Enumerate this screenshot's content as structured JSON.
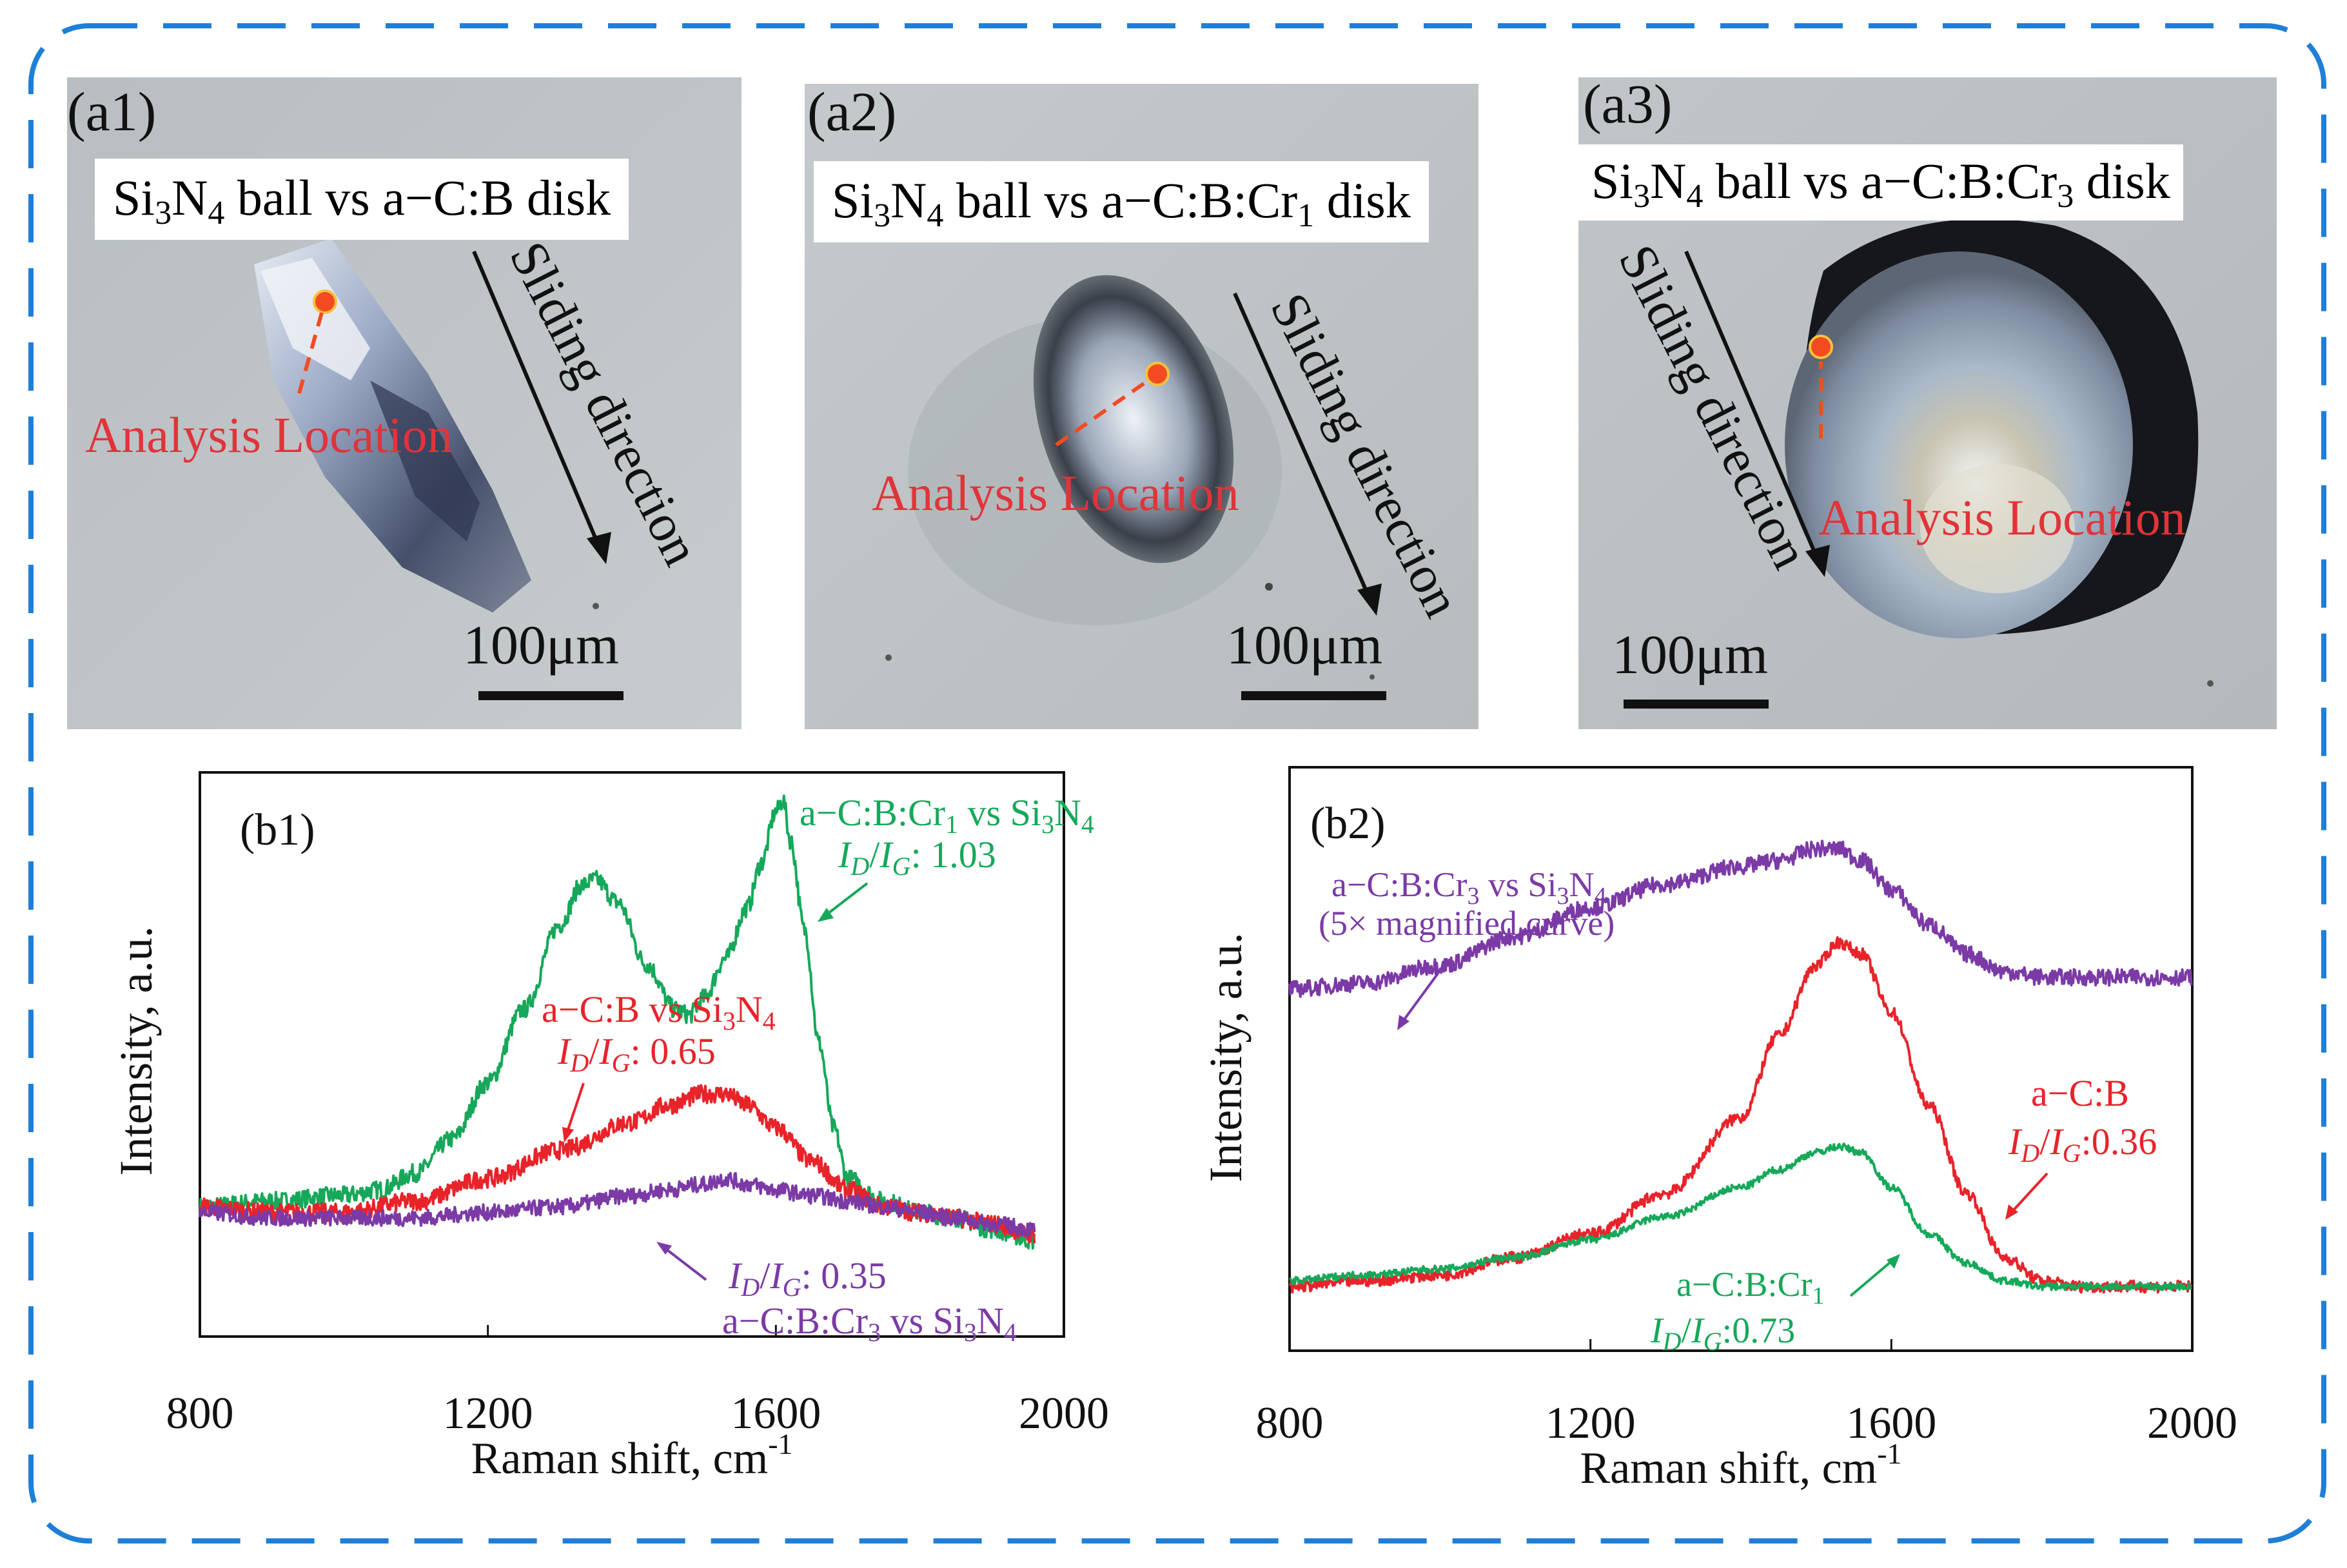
{
  "panels": {
    "a1": {
      "label": "(a1)",
      "title": {
        "p1": "Si",
        "s1": "3",
        "p2": "N",
        "s2": "4",
        "p3": " ball vs a−C:B disk"
      },
      "sliding": "Sliding direction",
      "location": "Analysis Location",
      "scale": "100μm"
    },
    "a2": {
      "label": "(a2)",
      "title": {
        "p1": "Si",
        "s1": "3",
        "p2": "N",
        "s2": "4",
        "p3": " ball vs a−C:B:Cr",
        "s3": "1",
        "p4": " disk"
      },
      "sliding": "Sliding direction",
      "location": "Analysis Location",
      "scale": "100μm"
    },
    "a3": {
      "label": "(a3)",
      "title": {
        "p1": "Si",
        "s1": "3",
        "p2": "N",
        "s2": "4",
        "p3": " ball vs a−C:B:Cr",
        "s3": "3",
        "p4": "  disk"
      },
      "sliding": "Sliding direction",
      "location": "Analysis Location",
      "scale": "100μm"
    }
  },
  "colors": {
    "green": "#16a85a",
    "red": "#e8232a",
    "purple": "#7b3aa6",
    "frame": "#1f7fd6",
    "marker": "#f24b22"
  },
  "chart_data": [
    {
      "type": "line",
      "panel_label": "(b1)",
      "xlabel": "Raman shift, cm",
      "xlabel_sup": "-1",
      "ylabel": "Intensity, a.u.",
      "xlim": [
        800,
        2000
      ],
      "ylim": [
        0,
        100
      ],
      "xticks": [
        "800",
        "1200",
        "1600",
        "2000"
      ],
      "series": [
        {
          "name": "a−C:B:Cr1 vs Si3N4",
          "color": "green",
          "x": [
            800,
            900,
            1000,
            1050,
            1100,
            1150,
            1200,
            1250,
            1300,
            1330,
            1350,
            1380,
            1420,
            1460,
            1480,
            1500,
            1530,
            1560,
            1580,
            1600,
            1610,
            1620,
            1640,
            1660,
            1680,
            1700,
            1750,
            1800,
            1850,
            1900,
            1960
          ],
          "y": [
            23,
            24,
            25,
            26,
            29,
            35,
            45,
            58,
            73,
            80,
            81,
            77,
            66,
            58,
            57,
            60,
            67,
            76,
            84,
            93,
            95,
            88,
            72,
            52,
            37,
            28,
            24,
            22,
            21,
            19,
            17
          ],
          "noise": 1.6
        },
        {
          "name": "a−C:B vs Si3N4",
          "color": "red",
          "x": [
            800,
            900,
            1000,
            1100,
            1200,
            1300,
            1400,
            1450,
            1500,
            1530,
            1560,
            1600,
            1650,
            1700,
            1750,
            1800,
            1850,
            1900,
            1960
          ],
          "y": [
            23,
            22,
            22,
            24,
            28,
            33,
            38,
            41,
            43,
            43,
            41,
            37,
            31,
            26,
            23,
            22,
            21,
            20,
            18
          ],
          "noise": 1.6
        },
        {
          "name": "a−C:B:Cr3 vs Si3N4",
          "color": "purple",
          "x": [
            800,
            900,
            1000,
            1100,
            1200,
            1300,
            1400,
            1450,
            1500,
            1530,
            1560,
            1600,
            1650,
            1700,
            1750,
            1800,
            1850,
            1900,
            1960
          ],
          "y": [
            22,
            21,
            21,
            21,
            22,
            23,
            25,
            26,
            27,
            28,
            27,
            26,
            25,
            24,
            23,
            22,
            21,
            20,
            19
          ],
          "noise": 1.4
        }
      ],
      "annotations": [
        {
          "color": "green",
          "line1": "a−C:B:Cr",
          "sub1": "1",
          "line1b": " vs Si",
          "sub2": "3",
          "line1c": "N",
          "sub3": "4",
          "ratio": "1.03"
        },
        {
          "color": "red",
          "line1": "a−C:B vs Si",
          "sub1": "3",
          "line1c": "N",
          "sub3": "4",
          "ratio": "0.65"
        },
        {
          "color": "purple",
          "line1": "a−C:B:Cr",
          "sub1": "3",
          "line1b": " vs Si",
          "sub2": "3",
          "line1c": "N",
          "sub3": "4",
          "ratio": "0.35"
        }
      ]
    },
    {
      "type": "line",
      "panel_label": "(b2)",
      "xlabel": "Raman shift, cm",
      "xlabel_sup": "-1",
      "ylabel": "Intensity, a.u.",
      "xlim": [
        800,
        2000
      ],
      "ylim": [
        0,
        100
      ],
      "xticks": [
        "800",
        "1200",
        "1600",
        "2000"
      ],
      "series": [
        {
          "name": "a−C:B:Cr3 vs Si3N4 (5× magnified curve)",
          "color": "purple",
          "x": [
            800,
            900,
            1000,
            1100,
            1200,
            1300,
            1400,
            1450,
            1500,
            1530,
            1560,
            1600,
            1650,
            1700,
            1750,
            1800,
            1900,
            2000
          ],
          "y": [
            62,
            63,
            66,
            71,
            76,
            80,
            83,
            84,
            86,
            86,
            84,
            79,
            73,
            68,
            65,
            64,
            64,
            64
          ],
          "noise": 1.4
        },
        {
          "name": "a−C:B",
          "color": "red",
          "x": [
            800,
            900,
            1000,
            1100,
            1200,
            1300,
            1400,
            1450,
            1500,
            1530,
            1560,
            1600,
            1650,
            1700,
            1750,
            1800,
            1850,
            1900,
            2000
          ],
          "y": [
            11,
            12,
            13,
            16,
            20,
            27,
            40,
            54,
            66,
            70,
            68,
            58,
            42,
            27,
            16,
            12,
            11,
            11,
            11
          ],
          "noise": 1.0
        },
        {
          "name": "a−C:B:Cr1",
          "color": "green",
          "x": [
            800,
            900,
            1000,
            1100,
            1200,
            1300,
            1400,
            1450,
            1500,
            1530,
            1560,
            1600,
            1650,
            1700,
            1750,
            1800,
            1900,
            2000
          ],
          "y": [
            12,
            13,
            14,
            16,
            19,
            23,
            28,
            31,
            34,
            35,
            34,
            28,
            20,
            15,
            12,
            11,
            11,
            11
          ],
          "noise": 0.6
        }
      ],
      "annotations": [
        {
          "color": "purple",
          "line1": "a−C:B:Cr",
          "sub1": "3",
          "line1b": " vs Si",
          "sub2": "3",
          "line1c": "N",
          "sub3": "4",
          "line2": "(5× magnified curve)"
        },
        {
          "color": "red",
          "line1": "a−C:B",
          "ratio": "0.36"
        },
        {
          "color": "green",
          "line1": "a−C:B:Cr",
          "sub1": "1",
          "ratio": "0.73"
        }
      ]
    }
  ]
}
